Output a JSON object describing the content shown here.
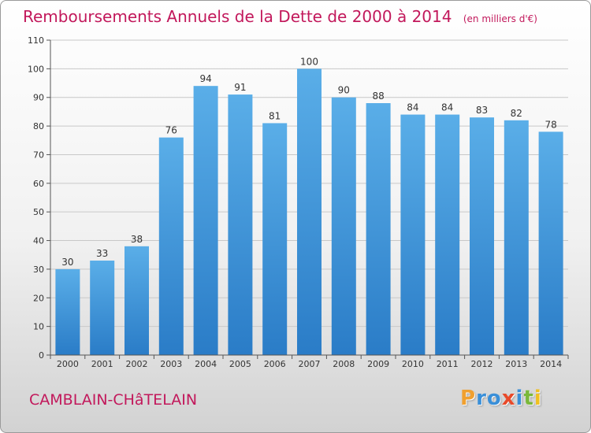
{
  "chart_data": {
    "type": "bar",
    "title": "Remboursements Annuels de la Dette de 2000 à 2014",
    "unit_note": "(en milliers d'€)",
    "categories": [
      "2000",
      "2001",
      "2002",
      "2003",
      "2004",
      "2005",
      "2006",
      "2007",
      "2008",
      "2009",
      "2010",
      "2011",
      "2012",
      "2013",
      "2014"
    ],
    "values": [
      30,
      33,
      38,
      76,
      94,
      91,
      81,
      100,
      90,
      88,
      84,
      84,
      83,
      82,
      78
    ],
    "ylim": [
      0,
      110
    ],
    "yticks": [
      0,
      10,
      20,
      30,
      40,
      50,
      60,
      70,
      80,
      90,
      100,
      110
    ],
    "grid": true,
    "bar_color_top": "#5aaee8",
    "bar_color_bottom": "#2a7cc7"
  },
  "footer": {
    "city": "CAMBLAIN-CHâTELAIN",
    "brand_letters": [
      "P",
      "r",
      "o",
      "x",
      "i",
      "t",
      "i"
    ],
    "brand_colors": [
      "#f0a030",
      "#3a8fd8",
      "#3a8fd8",
      "#e84a2a",
      "#3a8fd8",
      "#7ab83a",
      "#f0c020"
    ]
  },
  "colors": {
    "title": "#c2185b",
    "grid": "#c8c8c8",
    "axis": "#555555"
  }
}
